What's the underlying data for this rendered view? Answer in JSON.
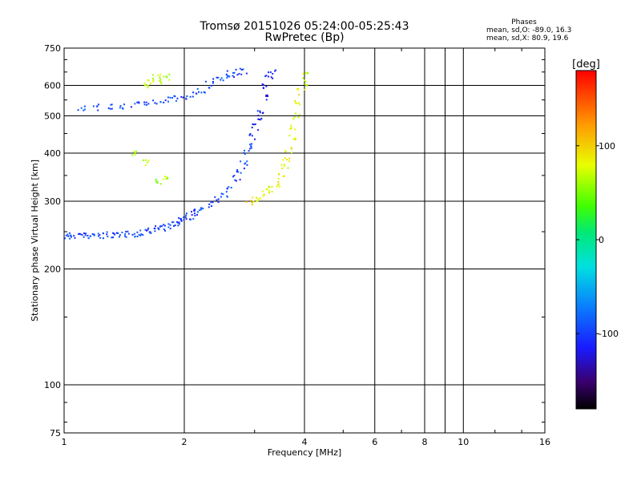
{
  "window": {
    "title_line1": "Tromsø 20151026 05:24:00-05:25:43",
    "title_line2": "RwPretec (Bp)"
  },
  "stats": {
    "title": "Phases",
    "line1": "mean, sd,O: -89.0, 16.3",
    "line2": "mean, sd,X:  80.9, 19.6"
  },
  "chart_data": {
    "type": "scatter",
    "title": "Tromsø 20151026 05:24:00-05:25:43",
    "subtitle": "RwPretec (Bp)",
    "xlabel": "Frequency [MHz]",
    "ylabel": "Stationary phase Virtual Height [km]",
    "xscale": "log",
    "yscale": "log",
    "xlim": [
      1,
      16
    ],
    "ylim": [
      75,
      750
    ],
    "xticks": [
      1,
      2,
      4,
      6,
      8,
      10,
      16
    ],
    "yticks": [
      75,
      100,
      200,
      300,
      400,
      500,
      600,
      750
    ],
    "grid": true,
    "colorbar": {
      "label": "[deg]",
      "range": [
        -180,
        180
      ],
      "ticks": [
        -100,
        0,
        100
      ],
      "colormap": "rainbow",
      "placement": "right"
    },
    "series": [
      {
        "name": "O",
        "color": "#1a40ff",
        "description_points": [
          [
            1.02,
            245,
            -95
          ],
          [
            1.05,
            245,
            -92
          ],
          [
            1.08,
            246,
            -100
          ],
          [
            1.12,
            245,
            -97
          ],
          [
            1.16,
            244,
            -90
          ],
          [
            1.2,
            246,
            -98
          ],
          [
            1.25,
            245,
            -104
          ],
          [
            1.3,
            246,
            -93
          ],
          [
            1.35,
            245,
            -99
          ],
          [
            1.4,
            246,
            -95
          ],
          [
            1.45,
            247,
            -101
          ],
          [
            1.5,
            248,
            -94
          ],
          [
            1.55,
            249,
            -97
          ],
          [
            1.6,
            251,
            -103
          ],
          [
            1.65,
            253,
            -92
          ],
          [
            1.7,
            255,
            -96
          ],
          [
            1.75,
            257,
            -99
          ],
          [
            1.8,
            259,
            -94
          ],
          [
            1.85,
            262,
            -101
          ],
          [
            1.9,
            265,
            -97
          ],
          [
            1.95,
            268,
            -93
          ],
          [
            2.0,
            271,
            -100
          ],
          [
            2.05,
            275,
            -95
          ],
          [
            2.1,
            279,
            -98
          ],
          [
            2.15,
            283,
            -104
          ],
          [
            2.2,
            287,
            -92
          ],
          [
            2.3,
            295,
            -96
          ],
          [
            2.4,
            303,
            -99
          ],
          [
            2.5,
            313,
            -94
          ],
          [
            2.6,
            325,
            -97
          ],
          [
            2.7,
            345,
            -102
          ],
          [
            2.75,
            360,
            -95
          ],
          [
            2.8,
            380,
            -90
          ],
          [
            2.85,
            405,
            -98
          ],
          [
            2.9,
            420,
            -93
          ],
          [
            2.95,
            445,
            -105
          ],
          [
            3.0,
            470,
            -110
          ],
          [
            3.05,
            495,
            -112
          ],
          [
            3.1,
            520,
            -115
          ],
          [
            3.15,
            560,
            -118
          ],
          [
            3.2,
            600,
            -120
          ],
          [
            3.25,
            630,
            -115
          ],
          [
            3.3,
            650,
            -105
          ],
          [
            1.1,
            525,
            -92
          ],
          [
            1.2,
            528,
            -96
          ],
          [
            1.3,
            530,
            -99
          ],
          [
            1.4,
            533,
            -94
          ],
          [
            1.5,
            536,
            -101
          ],
          [
            1.6,
            540,
            -97
          ],
          [
            1.7,
            545,
            -93
          ],
          [
            1.8,
            552,
            -100
          ],
          [
            1.9,
            558,
            -95
          ],
          [
            2.0,
            565,
            -98
          ],
          [
            2.1,
            572,
            -103
          ],
          [
            2.2,
            585,
            -92
          ],
          [
            2.3,
            605,
            -96
          ],
          [
            2.4,
            620,
            -99
          ],
          [
            2.5,
            632,
            -94
          ],
          [
            2.6,
            645,
            -97
          ],
          [
            2.7,
            652,
            -101
          ],
          [
            2.8,
            655,
            -96
          ]
        ]
      },
      {
        "name": "X",
        "color": "#e8e800",
        "description_points": [
          [
            2.9,
            300,
            95
          ],
          [
            3.0,
            305,
            88
          ],
          [
            3.1,
            310,
            82
          ],
          [
            3.2,
            318,
            90
          ],
          [
            3.3,
            325,
            78
          ],
          [
            3.4,
            335,
            85
          ],
          [
            3.5,
            350,
            92
          ],
          [
            3.55,
            370,
            76
          ],
          [
            3.6,
            390,
            84
          ],
          [
            3.65,
            410,
            90
          ],
          [
            3.7,
            440,
            80
          ],
          [
            3.75,
            470,
            86
          ],
          [
            3.8,
            500,
            74
          ],
          [
            3.85,
            540,
            82
          ],
          [
            3.9,
            580,
            88
          ],
          [
            3.95,
            610,
            80
          ],
          [
            4.0,
            640,
            75
          ],
          [
            1.6,
            600,
            70
          ],
          [
            1.65,
            620,
            78
          ],
          [
            1.7,
            640,
            66
          ],
          [
            1.75,
            615,
            72
          ],
          [
            1.8,
            635,
            60
          ],
          [
            1.5,
            400,
            62
          ],
          [
            1.6,
            380,
            70
          ],
          [
            1.7,
            340,
            55
          ],
          [
            1.8,
            345,
            66
          ]
        ]
      }
    ]
  }
}
